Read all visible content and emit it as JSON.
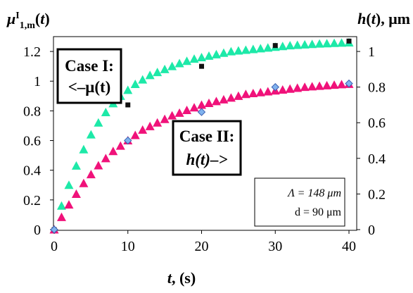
{
  "chart_data": {
    "type": "scatter",
    "x_title": "t, (s)",
    "left_title": "μI1,m(t)",
    "right_title": "h(t), μm",
    "x_ticks": [
      "0",
      "10",
      "20",
      "30",
      "40"
    ],
    "left_ticks": [
      "0",
      "0.2",
      "0.4",
      "0.6",
      "0.8",
      "1",
      "1.2"
    ],
    "right_ticks": [
      "0",
      "0.2",
      "0.4",
      "0.6",
      "0.8",
      "1"
    ],
    "x_range": [
      0,
      40
    ],
    "left_range": [
      0,
      1.3
    ],
    "right_range": [
      0,
      1.0833
    ],
    "grid": false,
    "boxes": {
      "case1_line1": "Case I:",
      "case1_line2": "<–μ(t)",
      "case2_line1": "Case II:",
      "case2_line2": "h(t)–>",
      "lambda_text": "Λ = 148 μm",
      "d_text": "d = 90 μm"
    },
    "series": [
      {
        "axis": "left",
        "marker": "triangle",
        "color": "#1de9a8",
        "x": [
          0,
          1,
          2,
          3,
          4,
          5,
          6,
          7,
          8,
          9,
          10,
          11,
          12,
          13,
          14,
          15,
          16,
          17,
          18,
          19,
          20,
          21,
          22,
          23,
          24,
          25,
          26,
          27,
          28,
          29,
          30,
          31,
          32,
          33,
          34,
          35,
          36,
          37,
          38,
          39,
          40
        ],
        "y": [
          0,
          0.16,
          0.3,
          0.43,
          0.54,
          0.64,
          0.72,
          0.79,
          0.85,
          0.9,
          0.94,
          0.98,
          1.01,
          1.04,
          1.06,
          1.08,
          1.1,
          1.12,
          1.135,
          1.15,
          1.16,
          1.17,
          1.18,
          1.19,
          1.2,
          1.205,
          1.21,
          1.215,
          1.22,
          1.225,
          1.23,
          1.235,
          1.24,
          1.243,
          1.246,
          1.249,
          1.252,
          1.254,
          1.256,
          1.258,
          1.26
        ]
      },
      {
        "axis": "left",
        "marker": "square",
        "color": "#111111",
        "x": [
          0,
          10,
          20,
          30,
          40
        ],
        "y": [
          0,
          0.84,
          1.1,
          1.24,
          1.27
        ]
      },
      {
        "axis": "right",
        "marker": "triangle",
        "color": "#f0127a",
        "x": [
          0,
          1,
          2,
          3,
          4,
          5,
          6,
          7,
          8,
          9,
          10,
          11,
          12,
          13,
          14,
          15,
          16,
          17,
          18,
          19,
          20,
          21,
          22,
          23,
          24,
          25,
          26,
          27,
          28,
          29,
          30,
          31,
          32,
          33,
          34,
          35,
          36,
          37,
          38,
          39,
          40
        ],
        "y": [
          0,
          0.07,
          0.14,
          0.2,
          0.26,
          0.31,
          0.36,
          0.4,
          0.44,
          0.47,
          0.5,
          0.53,
          0.56,
          0.58,
          0.6,
          0.62,
          0.64,
          0.655,
          0.67,
          0.685,
          0.7,
          0.71,
          0.72,
          0.73,
          0.74,
          0.75,
          0.76,
          0.765,
          0.77,
          0.775,
          0.78,
          0.785,
          0.79,
          0.795,
          0.8,
          0.803,
          0.806,
          0.809,
          0.812,
          0.815,
          0.817
        ]
      },
      {
        "axis": "right",
        "marker": "diamond",
        "color": "#7fb2ee",
        "x": [
          0,
          10,
          20,
          30,
          40
        ],
        "y": [
          0,
          0.5,
          0.66,
          0.8,
          0.82
        ]
      }
    ]
  }
}
